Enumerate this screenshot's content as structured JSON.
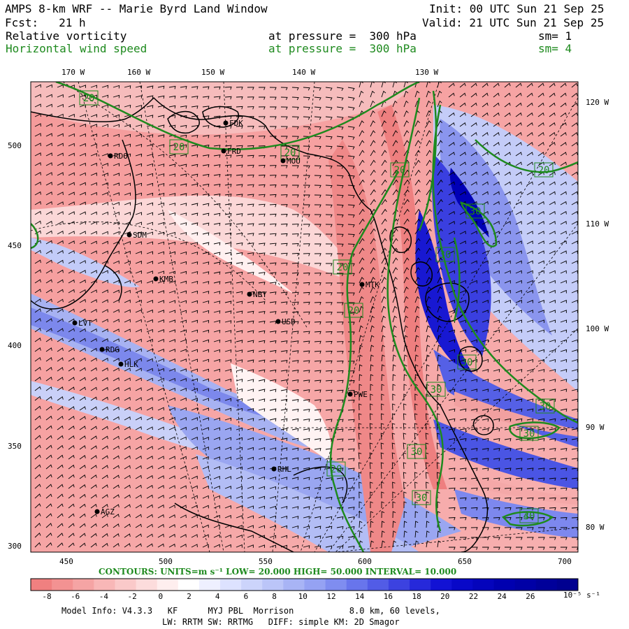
{
  "header": {
    "title": "AMPS 8-km WRF -- Marie Byrd Land Window",
    "init": "Init: 00 UTC Sun 21 Sep 25",
    "forecast": "Fcst:   21 h",
    "valid": "Valid: 21 UTC Sun 21 Sep 25",
    "field1": {
      "name": "Relative vorticity",
      "pressure": "at pressure =  300 hPa",
      "sm": "sm= 1"
    },
    "field2": {
      "name": "Horizontal wind speed",
      "pressure": "at pressure =  300 hPa",
      "sm": "sm= 4"
    }
  },
  "axes": {
    "top_longitudes": [
      "170 W",
      "160 W",
      "150 W",
      "140 W",
      "130 W"
    ],
    "right_longitudes": [
      "120 W",
      "110 W",
      "100 W",
      "90 W",
      "80 W"
    ],
    "left_ticks": [
      "500",
      "450",
      "400",
      "350",
      "300"
    ],
    "bottom_ticks": [
      "450",
      "500",
      "550",
      "600",
      "650",
      "700"
    ]
  },
  "stations": [
    {
      "code": "FDK"
    },
    {
      "code": "FRD"
    },
    {
      "code": "RDO"
    },
    {
      "code": "MOU"
    },
    {
      "code": "SDM"
    },
    {
      "code": "KMB"
    },
    {
      "code": "NBY"
    },
    {
      "code": "MTK"
    },
    {
      "code": "USD"
    },
    {
      "code": "LVT"
    },
    {
      "code": "RDG"
    },
    {
      "code": "HLK"
    },
    {
      "code": "PWE"
    },
    {
      "code": "RHL"
    },
    {
      "code": "AGZ"
    }
  ],
  "contour_labels": [
    "20",
    "20",
    "20",
    "20",
    "20",
    "20",
    "20",
    "20",
    "20",
    "30",
    "30",
    "30",
    "30",
    "30",
    "30",
    "30",
    "30",
    "30",
    "40"
  ],
  "contours_info": {
    "text": "CONTOURS:  UNITS=m s⁻¹   LOW=  20.000       HIGH=  50.000       INTERVAL=   10.000"
  },
  "colorbar": {
    "labels": [
      "-8",
      "-6",
      "-4",
      "-2",
      "0",
      "2",
      "4",
      "6",
      "8",
      "10",
      "12",
      "14",
      "16",
      "18",
      "20",
      "22",
      "24",
      "26"
    ],
    "unit_prefix": "10⁻⁵ s⁻¹",
    "colors": [
      "#f08080",
      "#f39292",
      "#f5a4a4",
      "#f8b7b7",
      "#fac9c9",
      "#fcdcdc",
      "#feeeee",
      "#ffffff",
      "#eef0ff",
      "#dde2ff",
      "#ccd4fb",
      "#bbc5f8",
      "#a8b4f5",
      "#95a2f3",
      "#7f8df0",
      "#6875ec",
      "#525ce6",
      "#3c42e0",
      "#2629da",
      "#1212d4",
      "#0808c8",
      "#0404bc",
      "#0000b0",
      "#0000a6",
      "#00009a",
      "#000090"
    ]
  },
  "footer": {
    "line1": "Model Info: V4.3.3   KF      MYJ PBL  Morrison           8.0 km, 60 levels,",
    "line2": "LW: RRTM SW: RRTMG   DIFF: simple KM: 2D Smagor"
  }
}
